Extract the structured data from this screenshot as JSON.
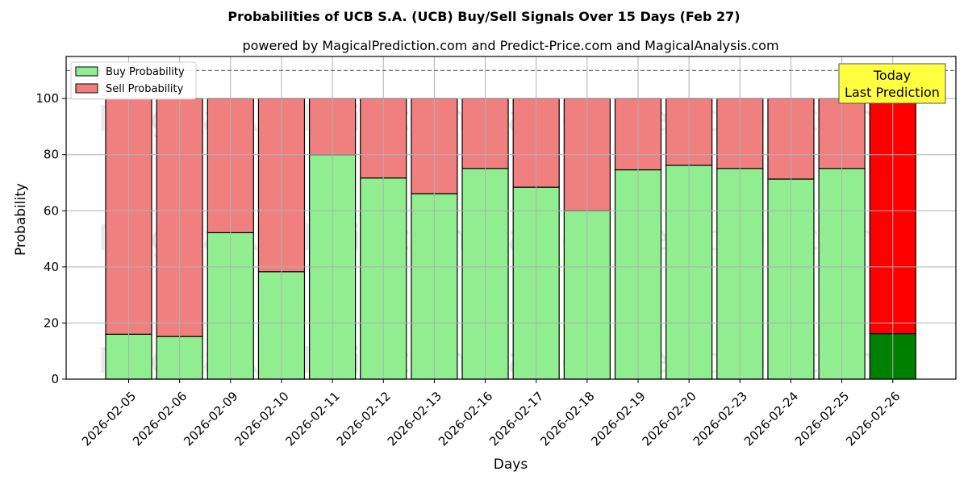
{
  "chart_data": {
    "type": "bar",
    "stacked": true,
    "title": "Probabilities of UCB S.A. (UCB) Buy/Sell Signals Over 15 Days (Feb 27)",
    "subtitle": "powered by MagicalPrediction.com and Predict-Price.com and MagicalAnalysis.com",
    "xlabel": "Days",
    "ylabel": "Probability",
    "ylim": [
      0,
      115
    ],
    "yticks": [
      0,
      20,
      40,
      60,
      80,
      100
    ],
    "reference_line": 110,
    "grid": true,
    "legend_position": "top-left",
    "categories": [
      "2026-02-05",
      "2026-02-06",
      "2026-02-09",
      "2026-02-10",
      "2026-02-11",
      "2026-02-12",
      "2026-02-13",
      "2026-02-16",
      "2026-02-17",
      "2026-02-18",
      "2026-02-19",
      "2026-02-20",
      "2026-02-23",
      "2026-02-24",
      "2026-02-25",
      "2026-02-26"
    ],
    "series": [
      {
        "name": "Buy Probability",
        "color": "#90ee90",
        "values": [
          16,
          15.2,
          52.2,
          38.3,
          80,
          71.7,
          66.1,
          75.1,
          68.4,
          60,
          74.6,
          76.2,
          75.1,
          71.3,
          75.1,
          16.2
        ]
      },
      {
        "name": "Sell Probability",
        "color": "#f08080",
        "values": [
          84,
          84.8,
          47.8,
          61.7,
          20,
          28.3,
          33.9,
          24.9,
          31.6,
          40,
          25.4,
          23.8,
          24.9,
          28.7,
          24.9,
          83.8
        ]
      }
    ],
    "highlight": {
      "index": 15,
      "buy_color": "#008000",
      "sell_color": "#ff0000"
    },
    "annotation": {
      "lines": [
        "Today",
        "Last Prediction"
      ],
      "bg": "#ffff40"
    },
    "watermarks": [
      "MagicalAnalysis.com",
      "MagicalPrediction.com"
    ]
  }
}
